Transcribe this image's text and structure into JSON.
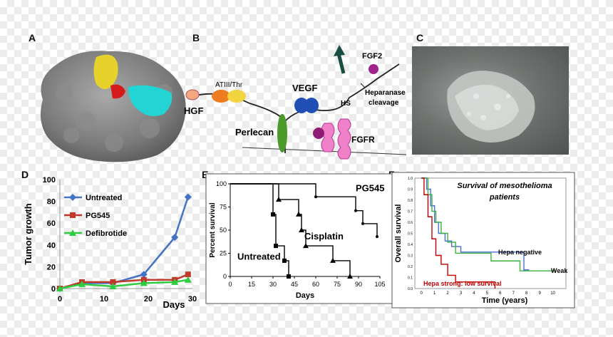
{
  "panels": {
    "a": {
      "label": "A"
    },
    "b": {
      "label": "B",
      "labels": {
        "hgf": "HGF",
        "atiii": "ATIII/Thr",
        "vegf": "VEGF",
        "perlecan": "Perlecan",
        "fgf2": "FGF2",
        "hs": "HS",
        "heparanase": "Heparanase",
        "cleavage": "cleavage",
        "fgfr": "FGFR"
      }
    },
    "c": {
      "label": "C"
    },
    "d": {
      "label": "D"
    },
    "e": {
      "label": "E"
    },
    "f": {
      "label": "F"
    }
  },
  "colors": {
    "untreated": "#4472c4",
    "pg545": "#c0392b",
    "defibrotide": "#2ecc40",
    "km_blue": "#4a6fd1",
    "km_green": "#3cb043",
    "km_red": "#c00000"
  },
  "chart_data": [
    {
      "id": "D",
      "type": "line",
      "title": "",
      "xlabel": "Days",
      "ylabel": "Tumor growth",
      "xlim": [
        0,
        30
      ],
      "ylim": [
        0,
        100
      ],
      "xticks": [
        0,
        10,
        20,
        30
      ],
      "yticks": [
        0,
        20,
        40,
        60,
        80,
        100
      ],
      "series": [
        {
          "name": "Untreated",
          "x": [
            0,
            5,
            12,
            19,
            26,
            29
          ],
          "y": [
            0,
            5,
            5,
            13,
            47,
            84
          ]
        },
        {
          "name": "PG545",
          "x": [
            0,
            5,
            12,
            19,
            26,
            29
          ],
          "y": [
            0,
            6,
            6,
            8,
            8,
            13
          ]
        },
        {
          "name": "Defibrotide",
          "x": [
            0,
            5,
            12,
            19,
            26,
            29
          ],
          "y": [
            0,
            4,
            2,
            5,
            6,
            8
          ]
        }
      ]
    },
    {
      "id": "E",
      "type": "line",
      "title": "",
      "xlabel": "Days",
      "ylabel": "Percent survival",
      "xlim": [
        0,
        105
      ],
      "ylim": [
        0,
        100
      ],
      "xticks": [
        0,
        15,
        30,
        45,
        60,
        75,
        90,
        105
      ],
      "yticks": [
        0,
        25,
        50,
        75,
        100
      ],
      "series": [
        {
          "name": "Untreated",
          "label": "Untreated",
          "steps": [
            [
              0,
              100
            ],
            [
              30,
              100
            ],
            [
              30,
              67
            ],
            [
              32,
              67
            ],
            [
              32,
              33
            ],
            [
              38,
              33
            ],
            [
              38,
              17
            ],
            [
              41,
              17
            ],
            [
              41,
              0
            ]
          ],
          "markers": [
            [
              30,
              67
            ],
            [
              32,
              33
            ],
            [
              38,
              17
            ],
            [
              41,
              0
            ]
          ]
        },
        {
          "name": "Cisplatin",
          "label": "Cisplatin",
          "steps": [
            [
              0,
              100
            ],
            [
              34,
              100
            ],
            [
              34,
              83
            ],
            [
              48,
              83
            ],
            [
              48,
              67
            ],
            [
              50,
              67
            ],
            [
              50,
              50
            ],
            [
              53,
              50
            ],
            [
              53,
              33
            ],
            [
              72,
              33
            ],
            [
              72,
              17
            ],
            [
              84,
              17
            ],
            [
              84,
              0
            ]
          ],
          "markers": [
            [
              34,
              83
            ],
            [
              48,
              67
            ],
            [
              50,
              50
            ],
            [
              53,
              33
            ],
            [
              72,
              17
            ],
            [
              84,
              0
            ]
          ]
        },
        {
          "name": "PG545",
          "label": "PG545",
          "steps": [
            [
              0,
              100
            ],
            [
              60,
              100
            ],
            [
              60,
              86
            ],
            [
              88,
              86
            ],
            [
              88,
              71
            ],
            [
              93,
              71
            ],
            [
              93,
              57
            ],
            [
              103,
              57
            ],
            [
              103,
              43
            ]
          ],
          "markers": [
            [
              60,
              86
            ],
            [
              88,
              71
            ],
            [
              93,
              57
            ],
            [
              103,
              43
            ]
          ]
        }
      ]
    },
    {
      "id": "F",
      "type": "line",
      "title": "Survival of mesothelioma patients",
      "xlabel": "Time (years)",
      "ylabel": "Overall survival",
      "xlim": [
        -0.5,
        11
      ],
      "ylim": [
        0,
        1.0
      ],
      "xticks": [
        0,
        1,
        2,
        3,
        4,
        5,
        6,
        7,
        8,
        9,
        10
      ],
      "yticks": [
        0,
        0.1,
        0.2,
        0.3,
        0.4,
        0.5,
        0.6,
        0.7,
        0.8,
        0.9,
        1.0
      ],
      "series": [
        {
          "name": "Hepa negative",
          "steps": [
            [
              0,
              1
            ],
            [
              0.4,
              1
            ],
            [
              0.4,
              0.9
            ],
            [
              0.7,
              0.9
            ],
            [
              0.7,
              0.75
            ],
            [
              1.0,
              0.75
            ],
            [
              1.0,
              0.6
            ],
            [
              1.3,
              0.6
            ],
            [
              1.3,
              0.5
            ],
            [
              1.8,
              0.5
            ],
            [
              1.8,
              0.43
            ],
            [
              2.3,
              0.43
            ],
            [
              2.3,
              0.38
            ],
            [
              3.0,
              0.38
            ],
            [
              3.0,
              0.33
            ],
            [
              7.8,
              0.33
            ],
            [
              7.8,
              0.17
            ],
            [
              8.2,
              0.17
            ]
          ]
        },
        {
          "name": "Weak",
          "steps": [
            [
              0,
              1
            ],
            [
              0.5,
              1
            ],
            [
              0.5,
              0.85
            ],
            [
              0.8,
              0.85
            ],
            [
              0.8,
              0.7
            ],
            [
              1.1,
              0.7
            ],
            [
              1.1,
              0.6
            ],
            [
              1.5,
              0.6
            ],
            [
              1.5,
              0.5
            ],
            [
              2.0,
              0.5
            ],
            [
              2.0,
              0.42
            ],
            [
              2.6,
              0.42
            ],
            [
              2.6,
              0.32
            ],
            [
              5.3,
              0.32
            ],
            [
              5.3,
              0.25
            ],
            [
              7.5,
              0.25
            ],
            [
              7.5,
              0.16
            ],
            [
              10.2,
              0.16
            ]
          ]
        },
        {
          "name": "Hepa strong: low survival",
          "steps": [
            [
              0,
              1
            ],
            [
              0.2,
              1
            ],
            [
              0.2,
              0.85
            ],
            [
              0.5,
              0.85
            ],
            [
              0.5,
              0.65
            ],
            [
              0.8,
              0.65
            ],
            [
              0.8,
              0.45
            ],
            [
              1.1,
              0.45
            ],
            [
              1.1,
              0.3
            ],
            [
              1.5,
              0.3
            ],
            [
              1.5,
              0.22
            ],
            [
              2.0,
              0.22
            ],
            [
              2.0,
              0.12
            ],
            [
              2.6,
              0.12
            ],
            [
              2.6,
              0.06
            ],
            [
              5.6,
              0.06
            ],
            [
              5.6,
              0
            ]
          ]
        }
      ]
    }
  ]
}
